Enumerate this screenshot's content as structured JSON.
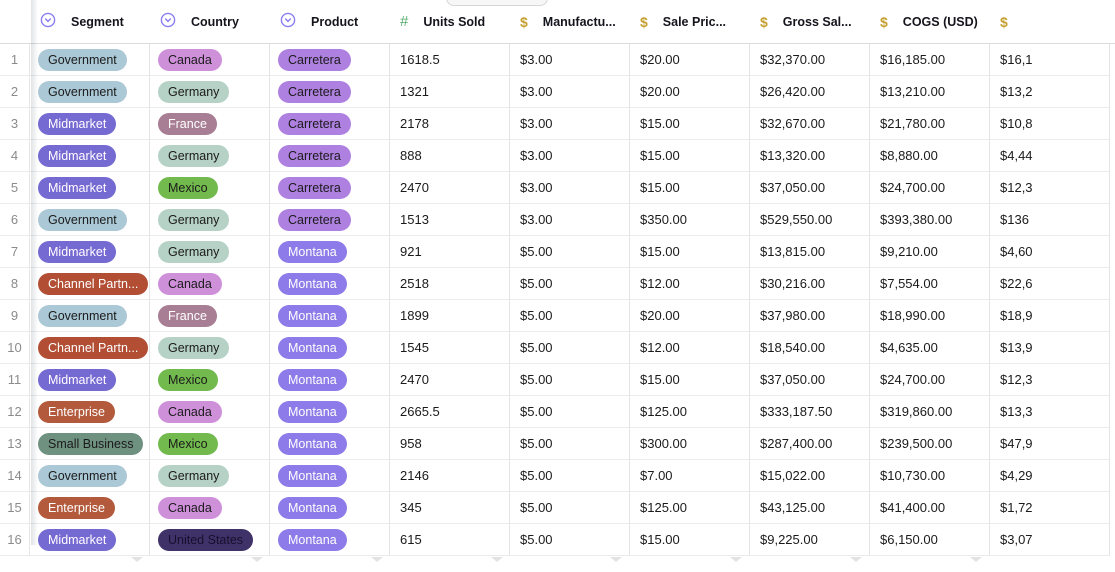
{
  "header": {
    "columns": [
      {
        "label": "Segment",
        "icon": "single-select"
      },
      {
        "label": "Country",
        "icon": "single-select"
      },
      {
        "label": "Product",
        "icon": "single-select"
      },
      {
        "label": "Units Sold",
        "icon": "number"
      },
      {
        "label": "Manufactu...",
        "icon": "currency"
      },
      {
        "label": "Sale Pric...",
        "icon": "currency"
      },
      {
        "label": "Gross Sal...",
        "icon": "currency"
      },
      {
        "label": "COGS (USD)",
        "icon": "currency"
      },
      {
        "label": "",
        "icon": "currency"
      }
    ]
  },
  "icon_colors": {
    "single_select": "#8a7ff0",
    "number": "#57ae6e",
    "currency": "#c6a032"
  },
  "pill_colors": {
    "Government": {
      "bg": "#abc8d6",
      "fg": "#1b1b1b"
    },
    "Midmarket": {
      "bg": "#7569d2",
      "fg": "#ffffff"
    },
    "Channel Partn...": {
      "bg": "#b24e34",
      "fg": "#ffffff"
    },
    "Enterprise": {
      "bg": "#b35a3c",
      "fg": "#ffffff"
    },
    "Small Business": {
      "bg": "#6f9180",
      "fg": "#1b1b1b"
    },
    "Canada": {
      "bg": "#cf90da",
      "fg": "#1b1b1b"
    },
    "Germany": {
      "bg": "#b6d1c5",
      "fg": "#1b1b1b"
    },
    "France": {
      "bg": "#a87e94",
      "fg": "#ffffff"
    },
    "Mexico": {
      "bg": "#73ba4e",
      "fg": "#1b1b1b"
    },
    "United States": {
      "bg": "#3f3268",
      "fg": "#16102e"
    },
    "Carretera": {
      "bg": "#ae80e0",
      "fg": "#1b1b1b"
    },
    "Montana": {
      "bg": "#8c7be9",
      "fg": "#ffffff"
    }
  },
  "rows": [
    {
      "num": "1",
      "segment": "Government",
      "country": "Canada",
      "product": "Carretera",
      "units": "1618.5",
      "manufacturing": "$3.00",
      "sale_price": "$20.00",
      "gross_sales": "$32,370.00",
      "cogs": "$16,185.00",
      "profit": "$16,1"
    },
    {
      "num": "2",
      "segment": "Government",
      "country": "Germany",
      "product": "Carretera",
      "units": "1321",
      "manufacturing": "$3.00",
      "sale_price": "$20.00",
      "gross_sales": "$26,420.00",
      "cogs": "$13,210.00",
      "profit": "$13,2"
    },
    {
      "num": "3",
      "segment": "Midmarket",
      "country": "France",
      "product": "Carretera",
      "units": "2178",
      "manufacturing": "$3.00",
      "sale_price": "$15.00",
      "gross_sales": "$32,670.00",
      "cogs": "$21,780.00",
      "profit": "$10,8"
    },
    {
      "num": "4",
      "segment": "Midmarket",
      "country": "Germany",
      "product": "Carretera",
      "units": "888",
      "manufacturing": "$3.00",
      "sale_price": "$15.00",
      "gross_sales": "$13,320.00",
      "cogs": "$8,880.00",
      "profit": "$4,44"
    },
    {
      "num": "5",
      "segment": "Midmarket",
      "country": "Mexico",
      "product": "Carretera",
      "units": "2470",
      "manufacturing": "$3.00",
      "sale_price": "$15.00",
      "gross_sales": "$37,050.00",
      "cogs": "$24,700.00",
      "profit": "$12,3"
    },
    {
      "num": "6",
      "segment": "Government",
      "country": "Germany",
      "product": "Carretera",
      "units": "1513",
      "manufacturing": "$3.00",
      "sale_price": "$350.00",
      "gross_sales": "$529,550.00",
      "cogs": "$393,380.00",
      "profit": "$136"
    },
    {
      "num": "7",
      "segment": "Midmarket",
      "country": "Germany",
      "product": "Montana",
      "units": "921",
      "manufacturing": "$5.00",
      "sale_price": "$15.00",
      "gross_sales": "$13,815.00",
      "cogs": "$9,210.00",
      "profit": "$4,60"
    },
    {
      "num": "8",
      "segment": "Channel Partn...",
      "country": "Canada",
      "product": "Montana",
      "units": "2518",
      "manufacturing": "$5.00",
      "sale_price": "$12.00",
      "gross_sales": "$30,216.00",
      "cogs": "$7,554.00",
      "profit": "$22,6"
    },
    {
      "num": "9",
      "segment": "Government",
      "country": "France",
      "product": "Montana",
      "units": "1899",
      "manufacturing": "$5.00",
      "sale_price": "$20.00",
      "gross_sales": "$37,980.00",
      "cogs": "$18,990.00",
      "profit": "$18,9"
    },
    {
      "num": "10",
      "segment": "Channel Partn...",
      "country": "Germany",
      "product": "Montana",
      "units": "1545",
      "manufacturing": "$5.00",
      "sale_price": "$12.00",
      "gross_sales": "$18,540.00",
      "cogs": "$4,635.00",
      "profit": "$13,9"
    },
    {
      "num": "11",
      "segment": "Midmarket",
      "country": "Mexico",
      "product": "Montana",
      "units": "2470",
      "manufacturing": "$5.00",
      "sale_price": "$15.00",
      "gross_sales": "$37,050.00",
      "cogs": "$24,700.00",
      "profit": "$12,3"
    },
    {
      "num": "12",
      "segment": "Enterprise",
      "country": "Canada",
      "product": "Montana",
      "units": "2665.5",
      "manufacturing": "$5.00",
      "sale_price": "$125.00",
      "gross_sales": "$333,187.50",
      "cogs": "$319,860.00",
      "profit": "$13,3"
    },
    {
      "num": "13",
      "segment": "Small Business",
      "country": "Mexico",
      "product": "Montana",
      "units": "958",
      "manufacturing": "$5.00",
      "sale_price": "$300.00",
      "gross_sales": "$287,400.00",
      "cogs": "$239,500.00",
      "profit": "$47,9"
    },
    {
      "num": "14",
      "segment": "Government",
      "country": "Germany",
      "product": "Montana",
      "units": "2146",
      "manufacturing": "$5.00",
      "sale_price": "$7.00",
      "gross_sales": "$15,022.00",
      "cogs": "$10,730.00",
      "profit": "$4,29"
    },
    {
      "num": "15",
      "segment": "Enterprise",
      "country": "Canada",
      "product": "Montana",
      "units": "345",
      "manufacturing": "$5.00",
      "sale_price": "$125.00",
      "gross_sales": "$43,125.00",
      "cogs": "$41,400.00",
      "profit": "$1,72"
    },
    {
      "num": "16",
      "segment": "Midmarket",
      "country": "United States",
      "product": "Montana",
      "units": "615",
      "manufacturing": "$5.00",
      "sale_price": "$15.00",
      "gross_sales": "$9,225.00",
      "cogs": "$6,150.00",
      "profit": "$3,07"
    }
  ]
}
